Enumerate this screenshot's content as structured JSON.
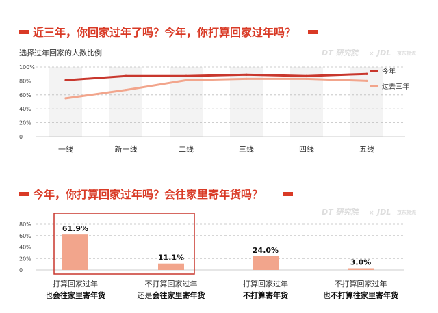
{
  "colors": {
    "accent": "#d93a26",
    "this_year": "#c8372d",
    "past_three_years": "#f2a58c",
    "bar": "#f2a58c",
    "highlight_box": "#c8372d",
    "grid": "#bdbdbd",
    "band": "#f3f3f3",
    "watermark": "#dddddd"
  },
  "watermark": {
    "dt": "DT 研究院",
    "sep": "×",
    "jdl": "JDL",
    "jdl_sub": "京东物流"
  },
  "chart_data": [
    {
      "type": "line",
      "title": "近三年，你回家过年了吗？今年，你打算回家过年吗？",
      "ylabel": "选择过年回家的人数比例",
      "categories": [
        "一线",
        "新一线",
        "二线",
        "三线",
        "四线",
        "五线"
      ],
      "yticks": [
        "100%",
        "80%",
        "60%",
        "40%",
        "20%",
        "0"
      ],
      "ylim": [
        0,
        100
      ],
      "grid": true,
      "legend_position": "right",
      "series": [
        {
          "name": "今年",
          "values": [
            81,
            87,
            87,
            89,
            87,
            90
          ]
        },
        {
          "name": "过去三年",
          "values": [
            55,
            67,
            81,
            83,
            83,
            80
          ]
        }
      ]
    },
    {
      "type": "bar",
      "title": "今年，你打算回家过年吗？会往家里寄年货吗？",
      "yticks": [
        "80%",
        "60%",
        "40%",
        "20%",
        "0"
      ],
      "ylim": [
        0,
        80
      ],
      "grid": true,
      "categories": [
        {
          "line1": "打算回家过年",
          "line2_plain": "也",
          "line2_bold": "会往家里寄年货"
        },
        {
          "line1": "不打算回家过年",
          "line2_plain": "还是",
          "line2_bold": "会往家里寄年货"
        },
        {
          "line1": "打算回家过年",
          "line2_plain": "",
          "line2_bold": "不打算寄年货"
        },
        {
          "line1": "不打算回家过年",
          "line2_plain": "也",
          "line2_bold": "不打算往家里寄年货"
        }
      ],
      "values": [
        61.9,
        11.1,
        24.0,
        3.0
      ],
      "value_labels": [
        "61.9%",
        "11.1%",
        "24.0%",
        "3.0%"
      ],
      "highlight": "first two bars"
    }
  ]
}
